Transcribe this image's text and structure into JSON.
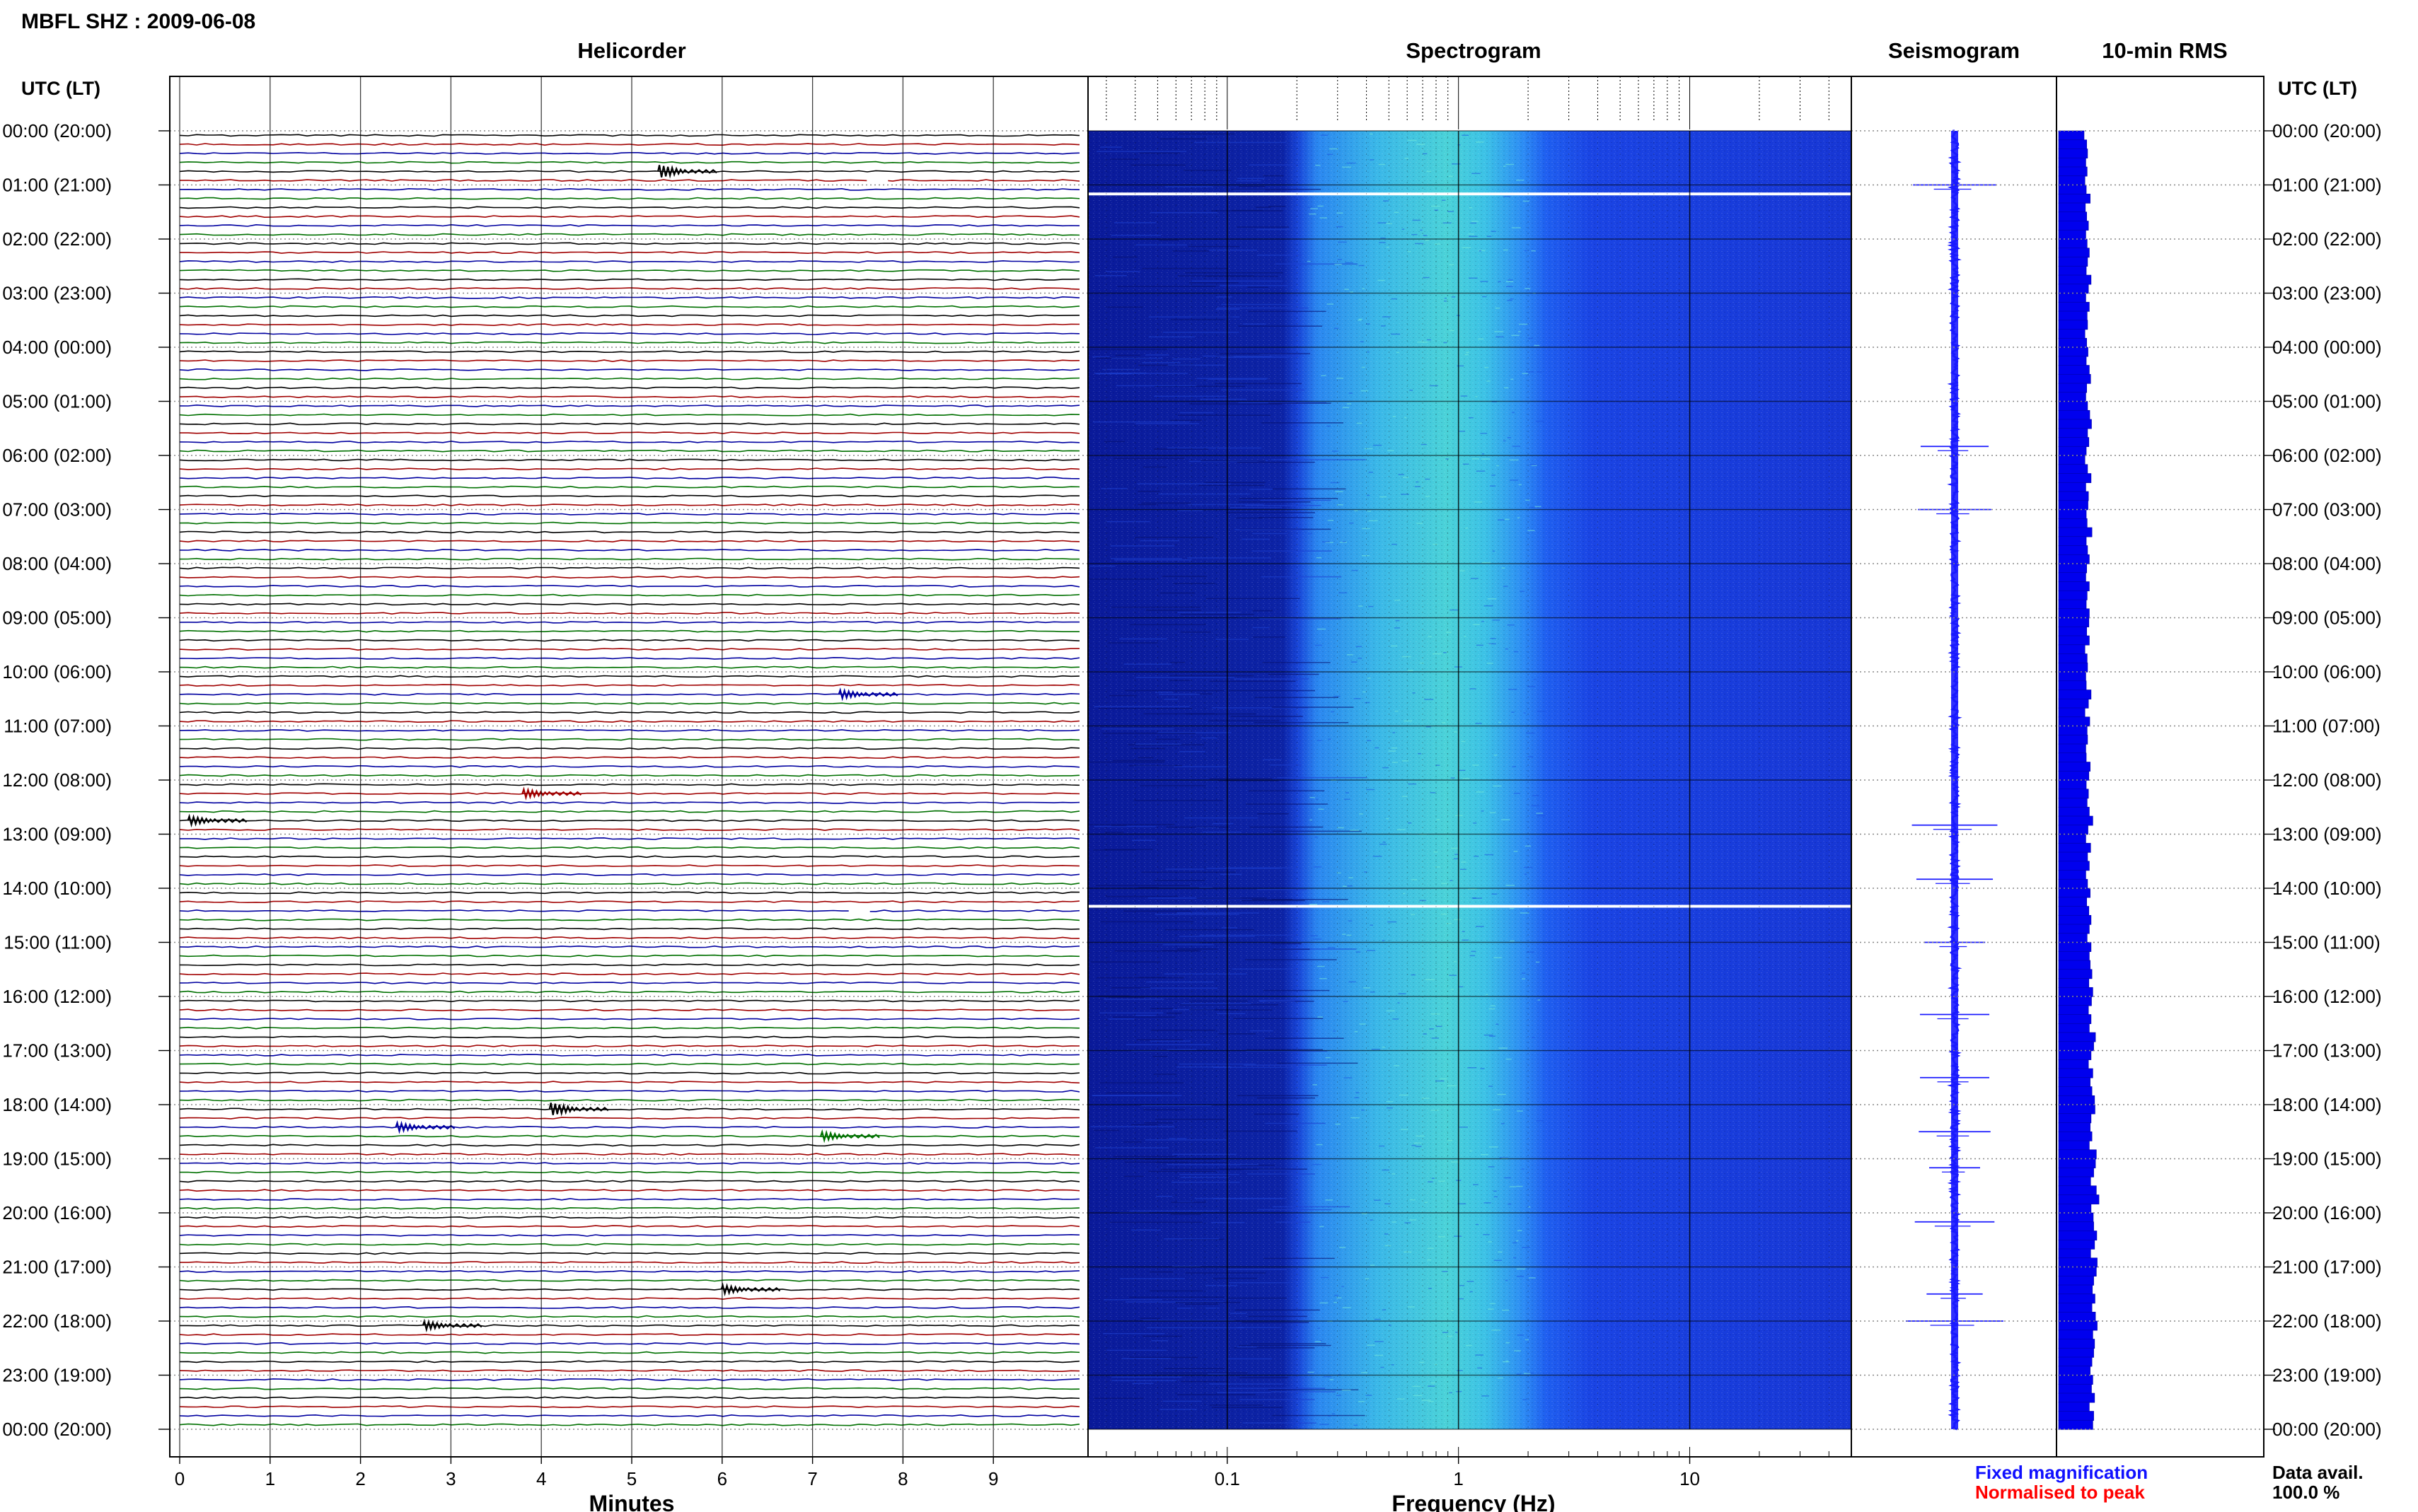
{
  "header": {
    "station_title": "MBFL SHZ : 2009-06-08",
    "utc_label_left": "UTC (LT)",
    "utc_label_right": "UTC (LT)"
  },
  "panels": {
    "helicorder": "Helicorder",
    "spectrogram": "Spectrogram",
    "seismogram": "Seismogram",
    "rms": "10-min RMS"
  },
  "legend": {
    "fixed_magnification": "Fixed magnification",
    "normalised_to_peak": "Normalised to peak",
    "data_avail_label": "Data avail.",
    "data_avail_value": "100.0 %"
  },
  "colors": {
    "trace_black": "#000000",
    "trace_red": "#a00000",
    "trace_blue": "#0000a0",
    "trace_green": "#007000",
    "fixed_magnification": "#1010ff",
    "normalised_to_peak": "#ff0000",
    "seismogram": "#1a1aff",
    "rms_bar": "#0000ee",
    "spectrogram_low": "#0a1a8c",
    "spectrogram_mid": "#2a7bff",
    "spectrogram_high": "#3ee8c8"
  },
  "chart_data": [
    {
      "type": "line",
      "name": "helicorder",
      "title": "Helicorder",
      "xlabel": "Minutes",
      "xlim": [
        0,
        10
      ],
      "x_ticks": [
        "0",
        "1",
        "2",
        "3",
        "4",
        "5",
        "6",
        "7",
        "8",
        "9"
      ],
      "rows_per_hour": 6,
      "row_minutes": 10,
      "trace_color_cycle": [
        "black",
        "red",
        "blue",
        "green"
      ],
      "gaps": [
        {
          "time_utc": "00:50",
          "minute": 7.6
        },
        {
          "time_utc": "14:20",
          "minute": 7.4
        }
      ],
      "events": [
        {
          "time_utc": "00:40",
          "minute": 5.4,
          "amplitude": "large"
        },
        {
          "time_utc": "10:20",
          "minute": 7.4,
          "amplitude": "medium"
        },
        {
          "time_utc": "12:10",
          "minute": 3.9,
          "amplitude": "medium"
        },
        {
          "time_utc": "12:40",
          "minute": 0.2,
          "amplitude": "medium"
        },
        {
          "time_utc": "18:00",
          "minute": 4.2,
          "amplitude": "large"
        },
        {
          "time_utc": "18:20",
          "minute": 2.5,
          "amplitude": "medium"
        },
        {
          "time_utc": "18:30",
          "minute": 7.2,
          "amplitude": "medium"
        },
        {
          "time_utc": "21:20",
          "minute": 6.1,
          "amplitude": "medium"
        },
        {
          "time_utc": "22:00",
          "minute": 2.8,
          "amplitude": "medium"
        }
      ]
    },
    {
      "type": "heatmap",
      "name": "spectrogram",
      "title": "Spectrogram",
      "xlabel": "Frequency (Hz)",
      "xscale": "log",
      "xlim": [
        0.025,
        50
      ],
      "x_ticks": [
        "0.1",
        "1",
        "10"
      ],
      "energy_band_hz": [
        0.25,
        2.0
      ],
      "gaps_utc": [
        "01:10",
        "14:20"
      ]
    },
    {
      "type": "line",
      "name": "seismogram",
      "title": "Seismogram",
      "burst_times_utc": [
        "01:00",
        "05:50",
        "07:00",
        "12:50",
        "13:50",
        "15:00",
        "16:20",
        "17:30",
        "18:30",
        "19:10",
        "20:10",
        "21:30",
        "22:00"
      ]
    },
    {
      "type": "bar",
      "name": "rms",
      "title": "10-min RMS",
      "bins_per_hour": 6,
      "values": [
        0.58,
        0.64,
        0.66,
        0.62,
        0.65,
        0.6,
        0.63,
        0.72,
        0.61,
        0.64,
        0.68,
        0.62,
        0.65,
        0.7,
        0.66,
        0.63,
        0.74,
        0.68,
        0.62,
        0.7,
        0.65,
        0.66,
        0.6,
        0.64,
        0.67,
        0.63,
        0.7,
        0.73,
        0.64,
        0.62,
        0.66,
        0.71,
        0.75,
        0.66,
        0.69,
        0.63,
        0.6,
        0.66,
        0.74,
        0.62,
        0.68,
        0.67,
        0.63,
        0.65,
        0.76,
        0.63,
        0.66,
        0.7,
        0.64,
        0.62,
        0.7,
        0.65,
        0.63,
        0.7,
        0.69,
        0.64,
        0.7,
        0.6,
        0.65,
        0.66,
        0.62,
        0.63,
        0.74,
        0.68,
        0.6,
        0.71,
        0.65,
        0.66,
        0.62,
        0.63,
        0.72,
        0.69,
        0.63,
        0.68,
        0.65,
        0.7,
        0.78,
        0.67,
        0.62,
        0.73,
        0.66,
        0.7,
        0.62,
        0.66,
        0.72,
        0.64,
        0.69,
        0.74,
        0.7,
        0.65,
        0.74,
        0.7,
        0.72,
        0.76,
        0.69,
        0.78,
        0.75,
        0.68,
        0.74,
        0.7,
        0.84,
        0.8,
        0.74,
        0.68,
        0.78,
        0.72,
        0.76,
        0.82,
        0.83,
        0.74,
        0.72,
        0.76,
        0.7,
        0.86,
        0.84,
        0.8,
        0.73,
        0.86,
        0.92,
        0.74,
        0.79,
        0.8,
        0.87,
        0.82,
        0.73,
        0.88,
        0.86,
        0.8,
        0.77,
        0.83,
        0.76,
        0.84,
        0.88,
        0.78,
        0.82,
        0.8,
        0.76,
        0.72,
        0.78,
        0.75,
        0.82,
        0.7,
        0.8,
        0.78
      ]
    }
  ],
  "time_labels": [
    "00:00 (20:00)",
    "01:00 (21:00)",
    "02:00 (22:00)",
    "03:00 (23:00)",
    "04:00 (00:00)",
    "05:00 (01:00)",
    "06:00 (02:00)",
    "07:00 (03:00)",
    "08:00 (04:00)",
    "09:00 (05:00)",
    "10:00 (06:00)",
    "11:00 (07:00)",
    "12:00 (08:00)",
    "13:00 (09:00)",
    "14:00 (10:00)",
    "15:00 (11:00)",
    "16:00 (12:00)",
    "17:00 (13:00)",
    "18:00 (14:00)",
    "19:00 (15:00)",
    "20:00 (16:00)",
    "21:00 (17:00)",
    "22:00 (18:00)",
    "23:00 (19:00)",
    "00:00 (20:00)"
  ]
}
